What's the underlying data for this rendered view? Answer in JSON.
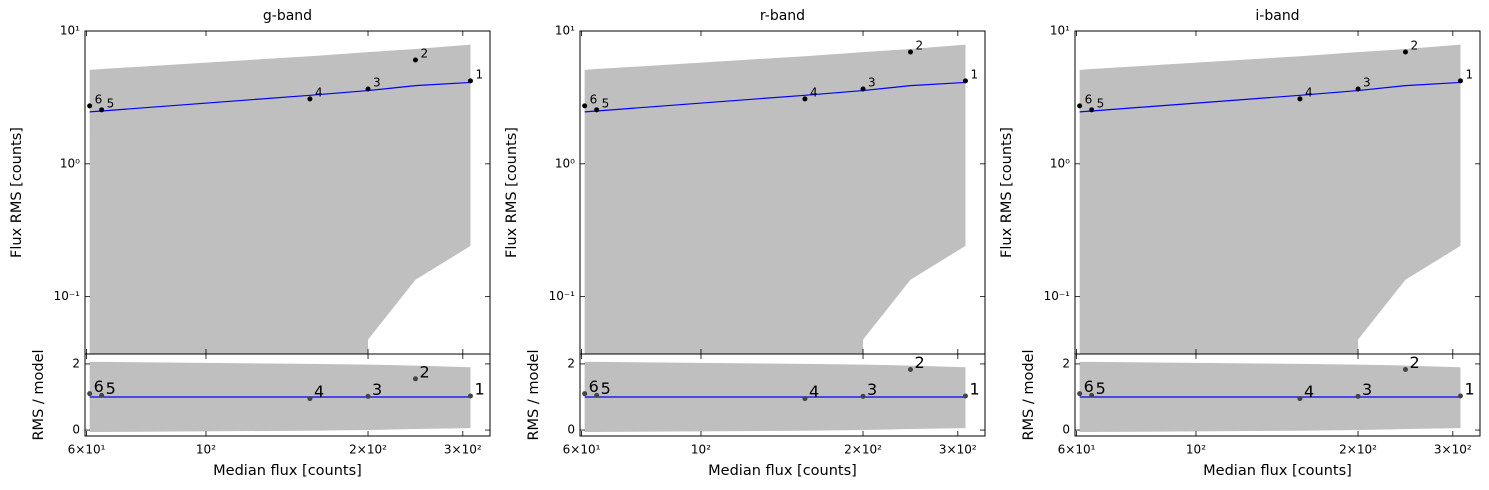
{
  "chart_data": [
    {
      "type": "scatter",
      "title": "g-band",
      "ylabel": "Flux RMS [counts]",
      "residual_ylabel": "RMS / model",
      "xlabel": "Median flux [counts]",
      "xscale": "log",
      "yscale": "log",
      "point_labels": [
        "6",
        "5",
        "4",
        "3",
        "2",
        "1"
      ],
      "x": [
        60.8,
        64,
        156,
        200,
        245,
        310
      ],
      "values": [
        2.73,
        2.55,
        3.08,
        3.66,
        6.05,
        4.21
      ],
      "model": [
        2.46,
        2.5,
        3.28,
        3.56,
        3.88,
        4.1
      ],
      "band_upper": [
        5.1,
        5.17,
        6.46,
        6.93,
        7.32,
        7.9
      ],
      "band_lower": [
        null,
        null,
        null,
        0.0475,
        0.134,
        0.241
      ],
      "residuals": [
        1.1,
        1.05,
        0.95,
        1.02,
        1.55,
        1.03
      ],
      "residual_band_upper": [
        2.06,
        2.06,
        2.0,
        1.98,
        1.95,
        1.9
      ],
      "residual_band_lower": [
        -0.06,
        -0.06,
        -0.02,
        0.0,
        0.03,
        0.06
      ],
      "point_color": "#000000",
      "residual_point_color": "#444444",
      "model_color": "#0000ff",
      "band_color": "#bfbfbf",
      "xlim": [
        59.6,
        337
      ],
      "ylim": [
        0.037,
        10
      ],
      "residual_ylim": [
        -0.18,
        2.3
      ],
      "xticks": [
        {
          "value": 60,
          "label": "6×10¹"
        },
        {
          "value": 100,
          "label": "10²"
        },
        {
          "value": 200,
          "label": "2×10²"
        },
        {
          "value": 300,
          "label": "3×10²"
        }
      ],
      "yticks": [
        {
          "value": 0.1,
          "label": "10⁻¹"
        },
        {
          "value": 1,
          "label": "10⁰"
        },
        {
          "value": 10,
          "label": "10¹"
        }
      ],
      "residual_yticks": [
        0,
        2
      ]
    },
    {
      "type": "scatter",
      "title": "r-band",
      "ylabel": "Flux RMS [counts]",
      "residual_ylabel": "RMS / model",
      "xlabel": "Median flux [counts]",
      "xscale": "log",
      "yscale": "log",
      "point_labels": [
        "6",
        "5",
        "4",
        "3",
        "2",
        "1"
      ],
      "x": [
        60.8,
        64,
        156,
        200,
        245,
        310
      ],
      "values": [
        2.73,
        2.55,
        3.08,
        3.66,
        6.95,
        4.21
      ],
      "model": [
        2.46,
        2.5,
        3.28,
        3.56,
        3.88,
        4.1
      ],
      "band_upper": [
        5.1,
        5.17,
        6.46,
        6.93,
        7.32,
        7.9
      ],
      "band_lower": [
        null,
        null,
        null,
        0.0475,
        0.134,
        0.241
      ],
      "residuals": [
        1.1,
        1.05,
        0.95,
        1.02,
        1.83,
        1.03
      ],
      "residual_band_upper": [
        2.06,
        2.06,
        2.0,
        1.98,
        1.95,
        1.9
      ],
      "residual_band_lower": [
        -0.06,
        -0.06,
        -0.02,
        0.0,
        0.03,
        0.06
      ],
      "point_color": "#000000",
      "residual_point_color": "#444444",
      "model_color": "#0000ff",
      "band_color": "#bfbfbf",
      "xlim": [
        59.6,
        337
      ],
      "ylim": [
        0.037,
        10
      ],
      "residual_ylim": [
        -0.18,
        2.3
      ],
      "xticks": [
        {
          "value": 60,
          "label": "6×10¹"
        },
        {
          "value": 100,
          "label": "10²"
        },
        {
          "value": 200,
          "label": "2×10²"
        },
        {
          "value": 300,
          "label": "3×10²"
        }
      ],
      "yticks": [
        {
          "value": 0.1,
          "label": "10⁻¹"
        },
        {
          "value": 1,
          "label": "10⁰"
        },
        {
          "value": 10,
          "label": "10¹"
        }
      ],
      "residual_yticks": [
        0,
        2
      ]
    },
    {
      "type": "scatter",
      "title": "i-band",
      "ylabel": "Flux RMS [counts]",
      "residual_ylabel": "RMS / model",
      "xlabel": "Median flux [counts]",
      "xscale": "log",
      "yscale": "log",
      "point_labels": [
        "6",
        "5",
        "4",
        "3",
        "2",
        "1"
      ],
      "x": [
        60.8,
        64,
        156,
        200,
        245,
        310
      ],
      "values": [
        2.73,
        2.55,
        3.08,
        3.66,
        6.95,
        4.21
      ],
      "model": [
        2.46,
        2.5,
        3.28,
        3.56,
        3.88,
        4.1
      ],
      "band_upper": [
        5.1,
        5.17,
        6.46,
        6.93,
        7.32,
        7.9
      ],
      "band_lower": [
        null,
        null,
        null,
        0.0475,
        0.134,
        0.241
      ],
      "residuals": [
        1.1,
        1.05,
        0.95,
        1.02,
        1.83,
        1.03
      ],
      "residual_band_upper": [
        2.06,
        2.06,
        2.0,
        1.98,
        1.95,
        1.9
      ],
      "residual_band_lower": [
        -0.06,
        -0.06,
        -0.02,
        0.0,
        0.03,
        0.06
      ],
      "point_color": "#000000",
      "residual_point_color": "#444444",
      "model_color": "#0000ff",
      "band_color": "#bfbfbf",
      "xlim": [
        59.6,
        337
      ],
      "ylim": [
        0.037,
        10
      ],
      "residual_ylim": [
        -0.18,
        2.3
      ],
      "xticks": [
        {
          "value": 60,
          "label": "6×10¹"
        },
        {
          "value": 100,
          "label": "10²"
        },
        {
          "value": 200,
          "label": "2×10²"
        },
        {
          "value": 300,
          "label": "3×10²"
        }
      ],
      "yticks": [
        {
          "value": 0.1,
          "label": "10⁻¹"
        },
        {
          "value": 1,
          "label": "10⁰"
        },
        {
          "value": 10,
          "label": "10¹"
        }
      ],
      "residual_yticks": [
        0,
        2
      ]
    }
  ]
}
